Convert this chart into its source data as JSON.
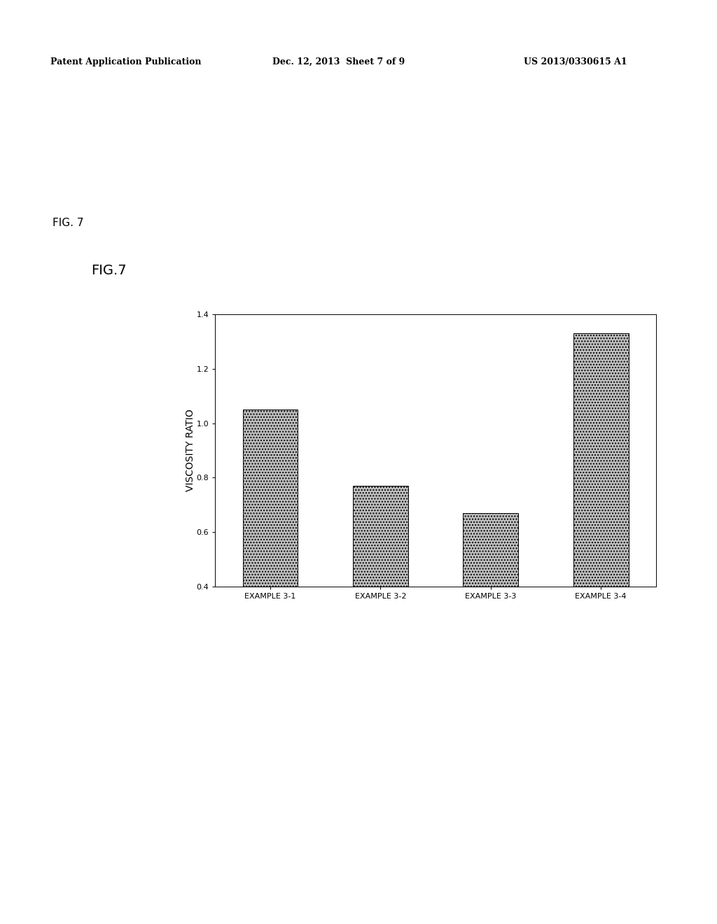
{
  "categories": [
    "EXAMPLE 3-1",
    "EXAMPLE 3-2",
    "EXAMPLE 3-3",
    "EXAMPLE 3-4"
  ],
  "values": [
    1.05,
    0.77,
    0.67,
    1.33
  ],
  "bar_color": "#c8c8c8",
  "ylabel": "VISCOSITY RATIO",
  "ylim": [
    0.4,
    1.4
  ],
  "yticks": [
    0.4,
    0.6,
    0.8,
    1.0,
    1.2,
    1.4
  ],
  "chart_title": "FIG.7",
  "fig_label": "FIG. 7",
  "background_color": "#ffffff",
  "bar_edgecolor": "#000000",
  "bar_width": 0.5,
  "figsize": [
    10.24,
    13.2
  ],
  "dpi": 100,
  "ylabel_fontsize": 10,
  "tick_fontsize": 8,
  "xlabel_fontsize": 8,
  "chart_title_fontsize": 14,
  "fig_label_fontsize": 11,
  "header_left": "Patent Application Publication",
  "header_mid": "Dec. 12, 2013  Sheet 7 of 9",
  "header_right": "US 2013/0330615 A1"
}
